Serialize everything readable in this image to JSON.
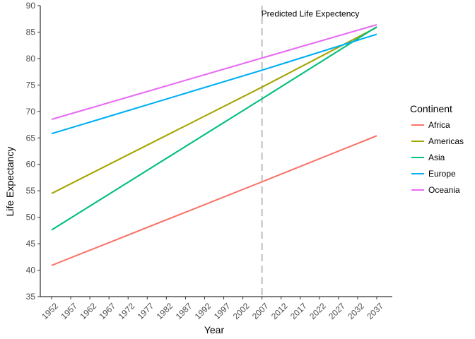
{
  "chart_data": {
    "type": "line",
    "xlabel": "Year",
    "ylabel": "Life Expectancy",
    "xlim": [
      1952,
      2037
    ],
    "ylim": [
      35,
      90
    ],
    "x_ticks": [
      1952,
      1957,
      1962,
      1967,
      1972,
      1977,
      1982,
      1987,
      1992,
      1997,
      2002,
      2007,
      2012,
      2017,
      2022,
      2027,
      2032,
      2037
    ],
    "y_ticks": [
      35,
      40,
      45,
      50,
      55,
      60,
      65,
      70,
      75,
      80,
      85,
      90
    ],
    "grid": false,
    "legend": {
      "title": "Continent",
      "placement": "right"
    },
    "series": [
      {
        "name": "Africa",
        "color": "#F8766D",
        "x": [
          1952,
          2007,
          2037
        ],
        "y": [
          40.9,
          56.7,
          65.4
        ]
      },
      {
        "name": "Americas",
        "color": "#A3A500",
        "x": [
          1952,
          2007,
          2037
        ],
        "y": [
          54.5,
          74.6,
          85.9
        ]
      },
      {
        "name": "Asia",
        "color": "#00BF7D",
        "x": [
          1952,
          2007,
          2037
        ],
        "y": [
          47.6,
          72.4,
          86.0
        ]
      },
      {
        "name": "Europe",
        "color": "#00B0F6",
        "x": [
          1952,
          2007,
          2037
        ],
        "y": [
          65.8,
          77.8,
          84.6
        ]
      },
      {
        "name": "Oceania",
        "color": "#E76BF3",
        "x": [
          1952,
          2007,
          2037
        ],
        "y": [
          68.5,
          80.1,
          86.4
        ]
      }
    ],
    "annotations": [
      {
        "type": "vline",
        "x": 2007,
        "color": "#BEBEBE",
        "dash": "dashed"
      },
      {
        "type": "text",
        "text": "Predicted Life Expectency",
        "x": 2007,
        "y": 89
      }
    ]
  }
}
